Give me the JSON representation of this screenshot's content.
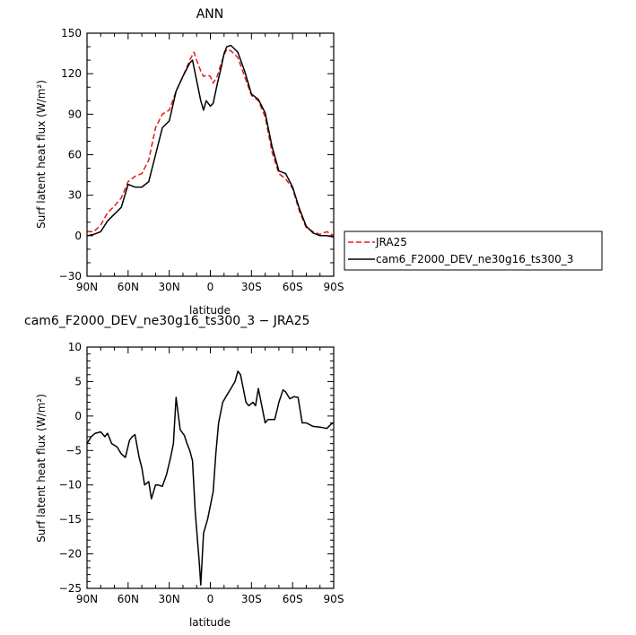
{
  "chart_data": [
    {
      "type": "line",
      "title": "ANN",
      "xlabel": "latitude",
      "ylabel": "Surf latent heat flux (W/m²)",
      "xlim": [
        -90,
        90
      ],
      "ylim": [
        -30,
        150
      ],
      "xticks": [
        {
          "value": -90,
          "label": "90N"
        },
        {
          "value": -60,
          "label": "60N"
        },
        {
          "value": -30,
          "label": "30N"
        },
        {
          "value": 0,
          "label": "0"
        },
        {
          "value": 30,
          "label": "30S"
        },
        {
          "value": 60,
          "label": "60S"
        },
        {
          "value": 90,
          "label": "90S"
        }
      ],
      "yticks": [
        {
          "value": -30,
          "label": "−30"
        },
        {
          "value": 0,
          "label": "0"
        },
        {
          "value": 30,
          "label": "30"
        },
        {
          "value": 60,
          "label": "60"
        },
        {
          "value": 90,
          "label": "90"
        },
        {
          "value": 120,
          "label": "120"
        },
        {
          "value": 150,
          "label": "150"
        }
      ],
      "legend_position": "right",
      "series": [
        {
          "name": "JRA25",
          "color": "#e31a1c",
          "dash": "dashed",
          "x": [
            -90,
            -85,
            -80,
            -75,
            -70,
            -65,
            -60,
            -55,
            -50,
            -45,
            -40,
            -35,
            -30,
            -25,
            -20,
            -15,
            -12,
            -10,
            -7,
            -5,
            -2,
            0,
            2,
            5,
            8,
            10,
            12,
            15,
            20,
            25,
            30,
            35,
            40,
            45,
            50,
            55,
            60,
            65,
            70,
            75,
            80,
            85,
            90
          ],
          "y": [
            3,
            3,
            8,
            17,
            22,
            28,
            40,
            44,
            46,
            56,
            80,
            90,
            93,
            107,
            118,
            130,
            136,
            130,
            122,
            118,
            119,
            118,
            113,
            118,
            128,
            134,
            138,
            137,
            132,
            118,
            104,
            100,
            88,
            62,
            46,
            42,
            35,
            18,
            6,
            3,
            1,
            3,
            0
          ]
        },
        {
          "name": "cam6_F2000_DEV_ne30g16_ts300_3",
          "color": "#000000",
          "dash": "solid",
          "x": [
            -90,
            -85,
            -80,
            -75,
            -70,
            -65,
            -60,
            -55,
            -50,
            -45,
            -40,
            -35,
            -30,
            -25,
            -20,
            -15,
            -13,
            -10,
            -7,
            -5,
            -3,
            0,
            2,
            5,
            8,
            10,
            12,
            15,
            20,
            25,
            30,
            35,
            40,
            45,
            50,
            55,
            60,
            65,
            70,
            75,
            80,
            85,
            90
          ],
          "y": [
            0,
            1,
            3,
            11,
            16,
            21,
            38,
            36,
            36,
            40,
            60,
            80,
            85,
            107,
            118,
            128,
            130,
            115,
            100,
            93,
            100,
            96,
            98,
            112,
            125,
            135,
            140,
            141,
            136,
            122,
            105,
            101,
            91,
            66,
            48,
            46,
            36,
            20,
            7,
            2,
            0,
            0,
            -1
          ]
        }
      ]
    },
    {
      "type": "line",
      "title": "cam6_F2000_DEV_ne30g16_ts300_3 − JRA25",
      "xlabel": "latitude",
      "ylabel": "Surf latent heat flux (W/m²)",
      "xlim": [
        -90,
        90
      ],
      "ylim": [
        -25,
        10
      ],
      "xticks": [
        {
          "value": -90,
          "label": "90N"
        },
        {
          "value": -60,
          "label": "60N"
        },
        {
          "value": -30,
          "label": "30N"
        },
        {
          "value": 0,
          "label": "0"
        },
        {
          "value": 30,
          "label": "30S"
        },
        {
          "value": 60,
          "label": "60S"
        },
        {
          "value": 90,
          "label": "90S"
        }
      ],
      "yticks": [
        {
          "value": -25,
          "label": "−25"
        },
        {
          "value": -20,
          "label": "−20"
        },
        {
          "value": -15,
          "label": "−15"
        },
        {
          "value": -10,
          "label": "−10"
        },
        {
          "value": -5,
          "label": "−5"
        },
        {
          "value": 0,
          "label": "0"
        },
        {
          "value": 5,
          "label": "5"
        },
        {
          "value": 10,
          "label": "10"
        }
      ],
      "series": [
        {
          "color": "#000000",
          "dash": "solid",
          "x": [
            -90,
            -87,
            -84,
            -80,
            -77,
            -75,
            -72,
            -68,
            -65,
            -62,
            -59,
            -57,
            -55,
            -52,
            -50,
            -48,
            -45,
            -43,
            -40,
            -38,
            -35,
            -32,
            -29,
            -27,
            -25,
            -22,
            -19,
            -17,
            -15,
            -13,
            -11,
            -8,
            -7,
            -5,
            -2,
            0,
            2,
            4,
            6,
            9,
            12,
            15,
            18,
            20,
            22,
            24,
            26,
            28,
            31,
            33,
            35,
            38,
            40,
            42,
            44,
            47,
            50,
            53,
            55,
            58,
            61,
            64,
            67,
            70,
            72,
            75,
            80,
            85,
            88,
            90
          ],
          "y": [
            -4,
            -3,
            -2.5,
            -2.3,
            -3,
            -2.5,
            -4,
            -4.5,
            -5.5,
            -6,
            -3.5,
            -3,
            -2.7,
            -6,
            -7.5,
            -10,
            -9.5,
            -12,
            -10,
            -10,
            -10.2,
            -8.5,
            -6,
            -4,
            2.7,
            -2,
            -2.8,
            -4,
            -5,
            -6.5,
            -14,
            -21.5,
            -24.5,
            -17,
            -15,
            -13,
            -11,
            -5.5,
            -1,
            2,
            3,
            4,
            5,
            6.5,
            6,
            4,
            2,
            1.5,
            2,
            1.5,
            4,
            1,
            -1,
            -0.5,
            -0.5,
            -0.5,
            2,
            3.8,
            3.5,
            2.5,
            2.8,
            2.7,
            -1,
            -1,
            -1.2,
            -1.5,
            -1.6,
            -1.8,
            -1.2,
            -1
          ]
        }
      ]
    }
  ]
}
